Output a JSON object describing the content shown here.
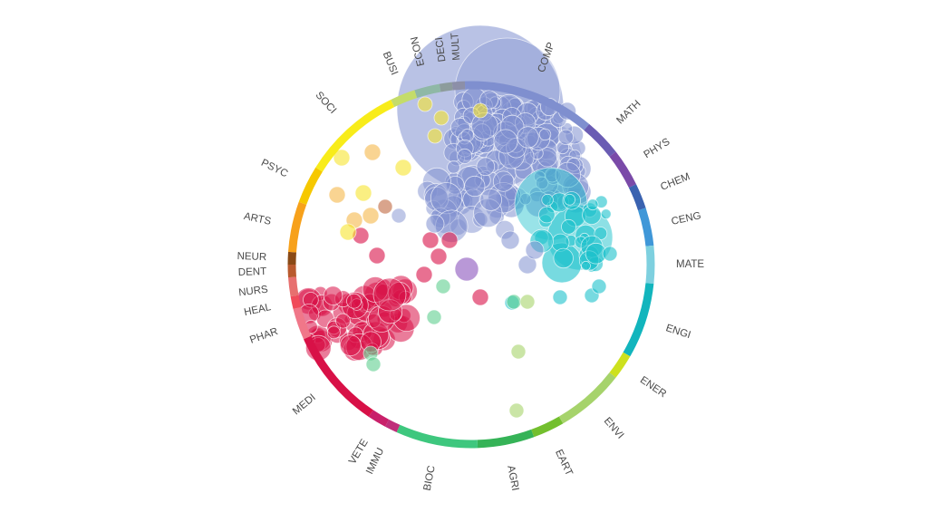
{
  "subjects": [
    {
      "label": "COMP",
      "color": "#7f8fcf"
    },
    {
      "label": "MATH",
      "color": "#6a5cb3"
    },
    {
      "label": "PHYS",
      "color": "#7a4aa8"
    },
    {
      "label": "CHEM",
      "color": "#3a62b0"
    },
    {
      "label": "CENG",
      "color": "#3f97d8"
    },
    {
      "label": "MATE",
      "color": "#7ed0df"
    },
    {
      "label": "ENGI",
      "color": "#12b5bd"
    },
    {
      "label": "ENER",
      "color": "#cde11e"
    },
    {
      "label": "ENVI",
      "color": "#a6d36b"
    },
    {
      "label": "EART",
      "color": "#73bf2e"
    },
    {
      "label": "AGRI",
      "color": "#35b357"
    },
    {
      "label": "BIOC",
      "color": "#3ec77e"
    },
    {
      "label": "IMMU",
      "color": "#bf2e7a"
    },
    {
      "label": "VETE",
      "color": "#c9206a"
    },
    {
      "label": "MEDI",
      "color": "#d81147"
    },
    {
      "label": "PHAR",
      "color": "#f07789"
    },
    {
      "label": "HEAL",
      "color": "#f04b5a"
    },
    {
      "label": "NURS",
      "color": "#e7706f"
    },
    {
      "label": "DENT",
      "color": "#b95a2e"
    },
    {
      "label": "NEUR",
      "color": "#8a4a16"
    },
    {
      "label": "ARTS",
      "color": "#f7a11b"
    },
    {
      "label": "PSYC",
      "color": "#f6c800"
    },
    {
      "label": "SOCI",
      "color": "#f8ec1a"
    },
    {
      "label": "BUSI",
      "color": "#c4dc6a"
    },
    {
      "label": "ECON",
      "color": "#8fb8a6"
    },
    {
      "label": "DECI",
      "color": "#8d9c9c"
    },
    {
      "label": "MULT",
      "color": "#8c8fa8"
    }
  ],
  "palette": {
    "comp": "#7f8fcf",
    "medi": "#d81147",
    "engi": "#1cc2cc",
    "soci": "#f6e52f",
    "arts": "#f5b84a",
    "bioc": "#5fcf8f",
    "envi": "#a6d36b",
    "phys": "#9b6cc6",
    "dent": "#b95a2e"
  }
}
